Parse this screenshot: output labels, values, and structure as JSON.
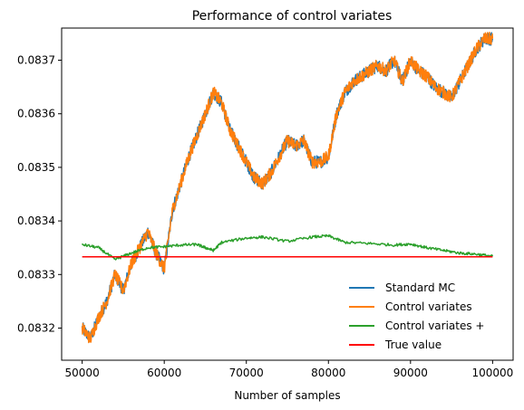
{
  "chart_data": {
    "type": "line",
    "title": "Performance of control variates",
    "xlabel": "Number of samples",
    "ylabel": "",
    "xlim": [
      47500,
      102500
    ],
    "ylim": [
      0.08314,
      0.08376
    ],
    "x_ticks": [
      50000,
      60000,
      70000,
      80000,
      90000,
      100000
    ],
    "x_tick_labels": [
      "50000",
      "60000",
      "70000",
      "80000",
      "90000",
      "100000"
    ],
    "y_ticks": [
      0.0832,
      0.0833,
      0.0834,
      0.0835,
      0.0836,
      0.0837
    ],
    "y_tick_labels": [
      "0.0832",
      "0.0833",
      "0.0834",
      "0.0835",
      "0.0836",
      "0.0837"
    ],
    "grid": false,
    "legend_position": "lower-right",
    "series": [
      {
        "name": "Standard MC",
        "color": "#1f77b4",
        "points": [
          [
            50000,
            0.0832
          ],
          [
            51000,
            0.08318
          ],
          [
            52000,
            0.08322
          ],
          [
            53000,
            0.08325
          ],
          [
            54000,
            0.0833
          ],
          [
            55000,
            0.08327
          ],
          [
            56000,
            0.08332
          ],
          [
            57000,
            0.08335
          ],
          [
            58000,
            0.08338
          ],
          [
            59000,
            0.08334
          ],
          [
            60000,
            0.08331
          ],
          [
            61000,
            0.08342
          ],
          [
            62000,
            0.08347
          ],
          [
            63000,
            0.08352
          ],
          [
            64000,
            0.08356
          ],
          [
            65000,
            0.0836
          ],
          [
            66000,
            0.08364
          ],
          [
            67000,
            0.08362
          ],
          [
            68000,
            0.08357
          ],
          [
            69000,
            0.08354
          ],
          [
            70000,
            0.08351
          ],
          [
            71000,
            0.08348
          ],
          [
            72000,
            0.08347
          ],
          [
            73000,
            0.08349
          ],
          [
            74000,
            0.08352
          ],
          [
            75000,
            0.08355
          ],
          [
            76000,
            0.08354
          ],
          [
            77000,
            0.08355
          ],
          [
            78000,
            0.08351
          ],
          [
            79000,
            0.08351
          ],
          [
            80000,
            0.08352
          ],
          [
            81000,
            0.0836
          ],
          [
            82000,
            0.08364
          ],
          [
            83000,
            0.08366
          ],
          [
            84000,
            0.08367
          ],
          [
            85000,
            0.08368
          ],
          [
            86000,
            0.08369
          ],
          [
            87000,
            0.08368
          ],
          [
            88000,
            0.0837
          ],
          [
            89000,
            0.08366
          ],
          [
            90000,
            0.0837
          ],
          [
            91000,
            0.08368
          ],
          [
            92000,
            0.08367
          ],
          [
            93000,
            0.08365
          ],
          [
            94000,
            0.08364
          ],
          [
            95000,
            0.08363
          ],
          [
            96000,
            0.08366
          ],
          [
            97000,
            0.08369
          ],
          [
            98000,
            0.08372
          ],
          [
            99000,
            0.08374
          ],
          [
            100000,
            0.08374
          ]
        ]
      },
      {
        "name": "Control variates",
        "color": "#ff7f0e",
        "points": [
          [
            50000,
            0.0832
          ],
          [
            51000,
            0.08318
          ],
          [
            52000,
            0.08322
          ],
          [
            53000,
            0.08325
          ],
          [
            54000,
            0.0833
          ],
          [
            55000,
            0.08327
          ],
          [
            56000,
            0.08332
          ],
          [
            57000,
            0.08335
          ],
          [
            58000,
            0.08338
          ],
          [
            59000,
            0.08334
          ],
          [
            60000,
            0.08331
          ],
          [
            61000,
            0.08342
          ],
          [
            62000,
            0.08347
          ],
          [
            63000,
            0.08352
          ],
          [
            64000,
            0.08356
          ],
          [
            65000,
            0.0836
          ],
          [
            66000,
            0.08364
          ],
          [
            67000,
            0.08362
          ],
          [
            68000,
            0.08357
          ],
          [
            69000,
            0.08354
          ],
          [
            70000,
            0.08351
          ],
          [
            71000,
            0.08348
          ],
          [
            72000,
            0.08347
          ],
          [
            73000,
            0.08349
          ],
          [
            74000,
            0.08352
          ],
          [
            75000,
            0.08355
          ],
          [
            76000,
            0.08354
          ],
          [
            77000,
            0.08355
          ],
          [
            78000,
            0.08351
          ],
          [
            79000,
            0.08351
          ],
          [
            80000,
            0.08352
          ],
          [
            81000,
            0.0836
          ],
          [
            82000,
            0.08364
          ],
          [
            83000,
            0.08366
          ],
          [
            84000,
            0.08367
          ],
          [
            85000,
            0.08368
          ],
          [
            86000,
            0.08369
          ],
          [
            87000,
            0.08368
          ],
          [
            88000,
            0.0837
          ],
          [
            89000,
            0.08366
          ],
          [
            90000,
            0.0837
          ],
          [
            91000,
            0.08368
          ],
          [
            92000,
            0.08367
          ],
          [
            93000,
            0.08365
          ],
          [
            94000,
            0.08364
          ],
          [
            95000,
            0.08363
          ],
          [
            96000,
            0.08366
          ],
          [
            97000,
            0.08369
          ],
          [
            98000,
            0.08372
          ],
          [
            99000,
            0.08374
          ],
          [
            100000,
            0.08374
          ]
        ]
      },
      {
        "name": "Control variates +",
        "color": "#2ca02c",
        "points": [
          [
            50000,
            0.083356
          ],
          [
            52000,
            0.08335
          ],
          [
            54000,
            0.083328
          ],
          [
            56000,
            0.08334
          ],
          [
            58000,
            0.08335
          ],
          [
            60000,
            0.083352
          ],
          [
            62000,
            0.083355
          ],
          [
            64000,
            0.083356
          ],
          [
            65000,
            0.08335
          ],
          [
            66000,
            0.083345
          ],
          [
            67000,
            0.08336
          ],
          [
            70000,
            0.083368
          ],
          [
            72000,
            0.08337
          ],
          [
            75000,
            0.083362
          ],
          [
            78000,
            0.08337
          ],
          [
            80000,
            0.083372
          ],
          [
            82000,
            0.08336
          ],
          [
            85000,
            0.083358
          ],
          [
            88000,
            0.083355
          ],
          [
            90000,
            0.083357
          ],
          [
            92000,
            0.08335
          ],
          [
            94000,
            0.083345
          ],
          [
            96000,
            0.08334
          ],
          [
            98000,
            0.083338
          ],
          [
            100000,
            0.083334
          ]
        ]
      },
      {
        "name": "True value",
        "color": "#ff0000",
        "points": [
          [
            50000,
            0.083333
          ],
          [
            100000,
            0.083333
          ]
        ]
      }
    ]
  }
}
